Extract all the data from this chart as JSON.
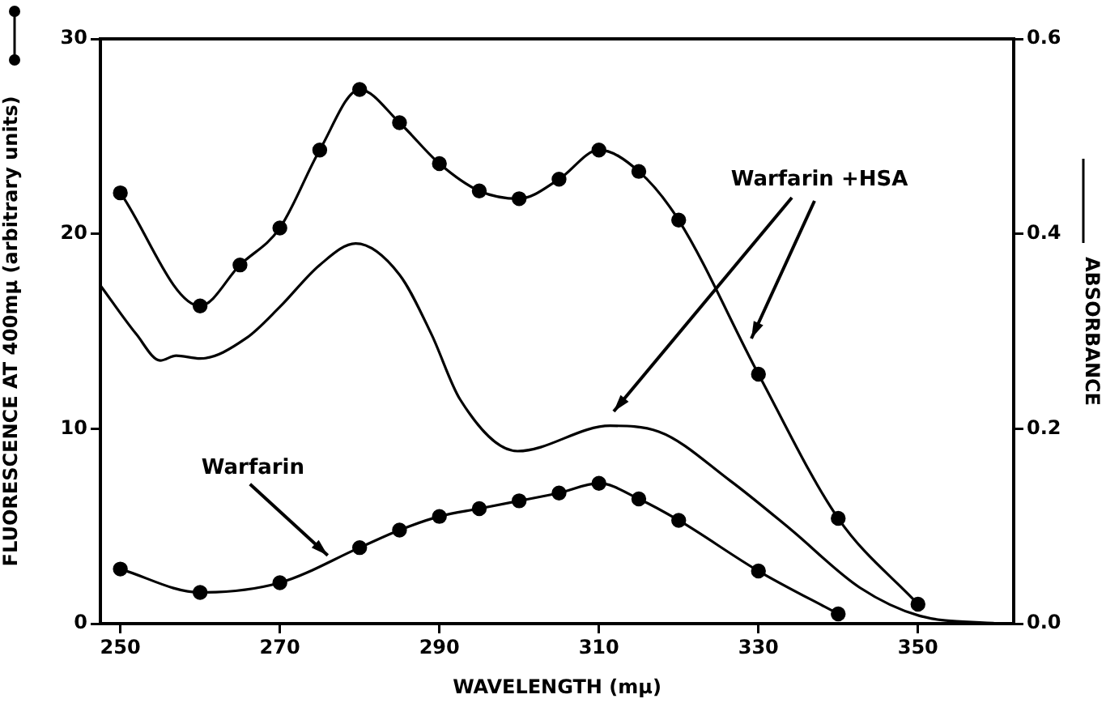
{
  "chart_data": {
    "type": "line",
    "xlabel": "WAVELENGTH (mμ)",
    "ylabel": "FLUORESCENCE AT 400mμ (arbitrary units)",
    "y2label": "ABSORBANCE",
    "xlim": [
      247.5,
      362
    ],
    "xticks": [
      250,
      270,
      290,
      310,
      330,
      350
    ],
    "ylim": [
      0,
      30
    ],
    "yticks": [
      0,
      10,
      20,
      30
    ],
    "y2lim": [
      0,
      0.6
    ],
    "y2ticks": [
      {
        "value": 0,
        "label": "0.0"
      },
      0.2,
      0.4,
      0.6
    ],
    "grid": false,
    "legend": false,
    "series": [
      {
        "color": "#000000",
        "marker": "circle",
        "x": [
          250,
          260,
          265,
          270,
          275,
          280,
          285,
          290,
          295,
          300,
          305,
          310,
          315,
          320,
          330,
          340,
          350
        ],
        "values": [
          22.1,
          16.3,
          18.4,
          20.3,
          24.3,
          27.4,
          25.7,
          23.6,
          22.2,
          21.8,
          22.8,
          24.3,
          23.2,
          20.7,
          12.8,
          5.4,
          1.0
        ]
      },
      {
        "color": "#000000",
        "marker": "circle",
        "x": [
          250,
          260,
          270,
          280,
          285,
          290,
          295,
          300,
          305,
          310,
          315,
          320,
          330,
          340
        ],
        "values": [
          2.8,
          1.6,
          2.1,
          3.9,
          4.8,
          5.5,
          5.9,
          6.3,
          6.7,
          7.2,
          6.4,
          5.3,
          2.7,
          0.5
        ]
      },
      {
        "color": "#000000",
        "marker": "none",
        "axis": "y2",
        "x": [
          247.5,
          252,
          255,
          257,
          260,
          265.8,
          270,
          275,
          279.5,
          285,
          289,
          292.6,
          299.8,
          311.4,
          317.5,
          326.4,
          334,
          342.7,
          350.2,
          360
        ],
        "values": [
          0.347,
          0.297,
          0.27,
          0.275,
          0.272,
          0.293,
          0.325,
          0.368,
          0.39,
          0.358,
          0.297,
          0.23,
          0.177,
          0.203,
          0.197,
          0.147,
          0.097,
          0.037,
          0.008,
          0
        ]
      }
    ],
    "annotations": [
      {
        "text": "Warfarin",
        "x": 276,
        "y": 3.5
      },
      "Warfarin +HSA"
    ]
  }
}
